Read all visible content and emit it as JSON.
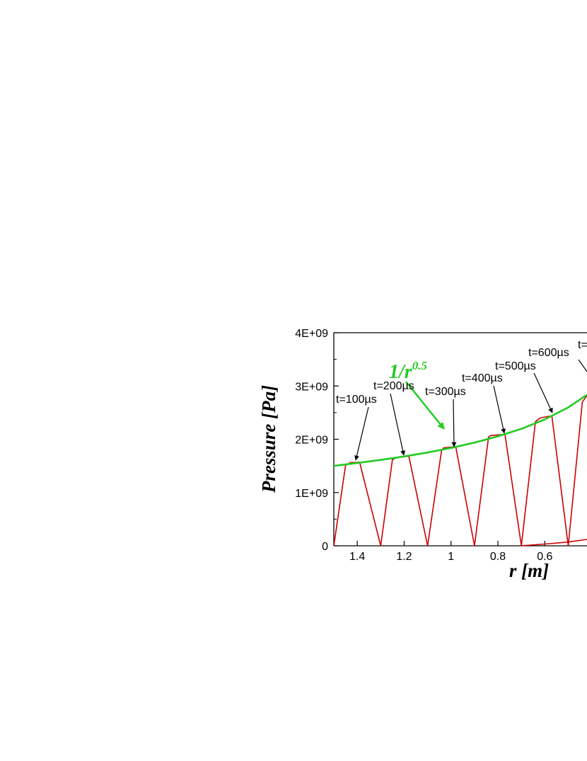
{
  "chart_data": {
    "type": "line",
    "xlabel": "r [m]",
    "ylabel": "Pressure [Pa]",
    "xlim": [
      1.5,
      0.42
    ],
    "x_reversed": true,
    "ylim": [
      0,
      4000000000
    ],
    "x_ticks": [
      1.4,
      1.2,
      1.0,
      0.8,
      0.6
    ],
    "x_tick_labels": [
      "1.4",
      "1.2",
      "1",
      "0.8",
      "0.6"
    ],
    "y_ticks": [
      0,
      1000000000,
      2000000000,
      3000000000,
      4000000000
    ],
    "y_tick_labels": [
      "0",
      "1E+09",
      "2E+09",
      "3E+09",
      "4E+09"
    ],
    "grid": false,
    "colors": {
      "pressure": "#cc0000",
      "fit": "#22cc22"
    },
    "fit_curve": {
      "label_base": "1/r",
      "label_exp": "0.5",
      "x": [
        1.5,
        1.4,
        1.3,
        1.2,
        1.1,
        1.0,
        0.9,
        0.8,
        0.7,
        0.6,
        0.5,
        0.42
      ],
      "y": [
        1500000000,
        1553000000,
        1612000000,
        1677000000,
        1752000000,
        1837000000,
        1936000000,
        2054000000,
        2196000000,
        2372000000,
        2598000000,
        2835000000
      ]
    },
    "series": [
      {
        "x": [
          1.5,
          1.45,
          1.43,
          1.39,
          1.3
        ],
        "y": [
          0,
          1510000000,
          1560000000,
          1570000000,
          0
        ]
      },
      {
        "x": [
          1.3,
          1.25,
          1.23,
          1.18,
          1.1
        ],
        "y": [
          0,
          1620000000,
          1660000000,
          1680000000,
          0
        ]
      },
      {
        "x": [
          1.1,
          1.04,
          1.03,
          0.98,
          0.9
        ],
        "y": [
          0,
          1800000000,
          1840000000,
          1860000000,
          0
        ]
      },
      {
        "x": [
          0.9,
          0.84,
          0.83,
          0.77,
          0.7
        ],
        "y": [
          0,
          2040000000,
          2070000000,
          2090000000,
          0
        ]
      },
      {
        "x": [
          0.7,
          0.64,
          0.62,
          0.57,
          0.5
        ],
        "y": [
          0,
          2330000000,
          2400000000,
          2440000000,
          0
        ]
      },
      {
        "x": [
          0.5,
          0.44,
          0.42
        ],
        "y": [
          0,
          2700000000,
          2820000000
        ]
      },
      {
        "x": [
          0.7,
          0.58,
          0.5,
          0.42
        ],
        "y": [
          0,
          40000000,
          70000000,
          120000000
        ]
      }
    ],
    "annotations": [
      {
        "text": "t=100µs",
        "x": 1.39,
        "y": 1570000000
      },
      {
        "text": "t=200µs",
        "x": 1.18,
        "y": 1680000000
      },
      {
        "text": "t=300µs",
        "x": 0.995,
        "y": 1860000000
      },
      {
        "text": "t=400µs",
        "x": 0.79,
        "y": 2080000000
      },
      {
        "text": "t=500µs",
        "x": 0.59,
        "y": 2430000000
      },
      {
        "text": "t=600µs",
        "x": 0.42,
        "y": 2800000000
      },
      {
        "text": "t=",
        "x": 0.42,
        "y": 3950000000
      }
    ]
  }
}
